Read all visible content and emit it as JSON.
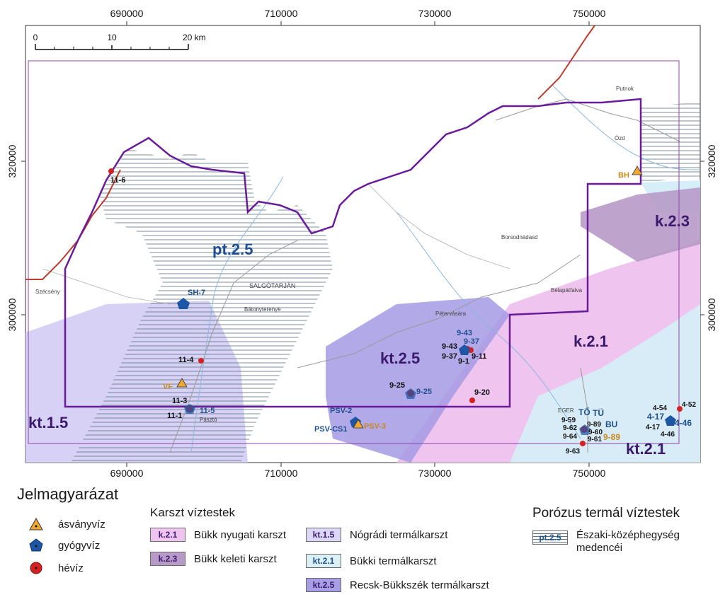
{
  "coords": {
    "top_x": [
      "690000",
      "710000",
      "730000",
      "750000"
    ],
    "bottom_x": [
      "690000",
      "710000",
      "730000",
      "750000"
    ],
    "left_y": [
      "320000",
      "300000"
    ],
    "right_y": [
      "320000",
      "300000"
    ]
  },
  "scale": {
    "zero": "0",
    "mid": "10",
    "end": "20 km"
  },
  "region_labels": {
    "pt25": "pt.2.5",
    "k23": "k.2.3",
    "k21": "k.2.1",
    "kt25": "kt.2.5",
    "kt15": "kt.1.5",
    "kt21": "kt.2.1"
  },
  "towns": {
    "salgotarjan": "SALGÓTARJÁN",
    "putnok": "Putnok",
    "ozd": "Ózd",
    "eger": "EGER",
    "borsodnadasd": "Borsodnádasd",
    "szecseny": "Szécsény",
    "pasztó": "Pásztó",
    "petervasara": "Pétervására",
    "batonyterenye": "Bátonyterenye",
    "belapatfalva": "Bélapátfalva"
  },
  "points": {
    "p116": "11-6",
    "bh": "BH",
    "sh7": "SH-7",
    "p114": "11-4",
    "vf": "VF",
    "p113": "11-3",
    "p111": "11-1",
    "p115": "11-5",
    "p943b": "9-43",
    "p937b": "9-37",
    "p943": "9-43",
    "p937": "9-37",
    "p91": "9-1",
    "p911": "9-11",
    "p925": "9-25",
    "p925b": "9-25",
    "p920": "9-20",
    "psv2": "PSV-2",
    "psvcs1": "PSV-CS1",
    "psv3": "PSV-3",
    "to": "TŐ",
    "tu": "TÜ",
    "p959": "9-59",
    "p989": "9-89",
    "p962": "9-62",
    "p960": "9-60",
    "p964": "9-64",
    "p961": "9-61",
    "p989o": "9-89",
    "p963": "9-63",
    "bu": "BU",
    "p454": "4-54",
    "p452": "4-52",
    "p417b": "4-17",
    "p446b": "4-46",
    "p417": "4-17",
    "p446": "4-46"
  },
  "legend": {
    "title": "Jelmagyarázat",
    "symbols": [
      {
        "label": "ásványvíz",
        "icon": "triangle-icon",
        "color": "#f0a830"
      },
      {
        "label": "gyógyvíz",
        "icon": "pentagon-icon",
        "color": "#1e56a6"
      },
      {
        "label": "hévíz",
        "icon": "circle-icon",
        "color": "#d42020"
      }
    ],
    "karst_title": "Karszt víztestek",
    "karst": [
      {
        "code": "k.2.1",
        "label": "Bükk nyugati karszt",
        "color": "#efc4ef"
      },
      {
        "code": "k.2.3",
        "label": "Bükk keleti karszt",
        "color": "#b79ac7"
      },
      {
        "code": "kt.1.5",
        "label": "Nógrádi termálkarszt",
        "color": "#dcd6f7"
      },
      {
        "code": "kt.2.1",
        "label": "Bükki termálkarszt",
        "color": "#dcf0f7"
      },
      {
        "code": "kt.2.5",
        "label": "Recsk-Bükkszék termálkarszt",
        "color": "#a89ee6"
      }
    ],
    "porous_title": "Porózus termál víztestek",
    "porous_code": "pt.2.5",
    "porous_label_1": "Északi-középhegység",
    "porous_label_2": "medencéi"
  }
}
